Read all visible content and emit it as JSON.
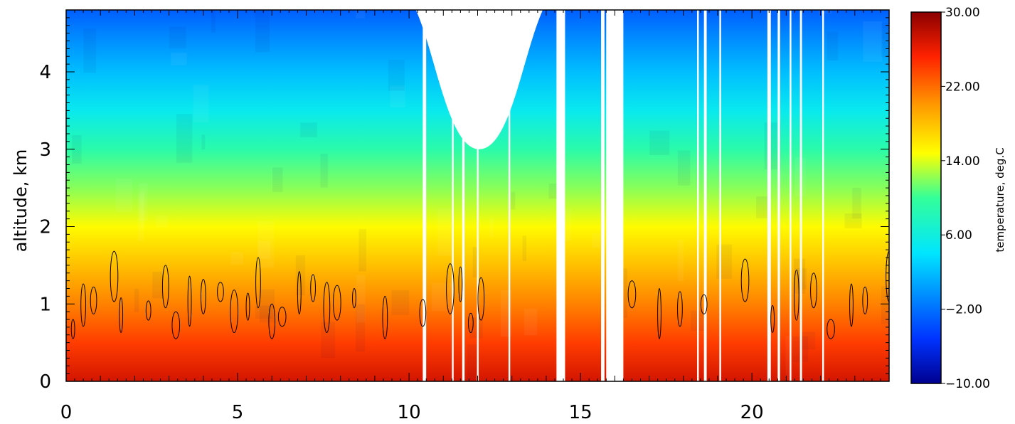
{
  "chart_data": {
    "type": "heatmap",
    "title": "",
    "xlabel": "",
    "ylabel": "altitude,  km",
    "xlim": [
      0,
      24
    ],
    "ylim": [
      0,
      4.8
    ],
    "x_ticks": [
      0,
      5,
      10,
      15,
      20
    ],
    "x_tick_labels": [
      "0",
      "5",
      "10",
      "15",
      "20"
    ],
    "y_ticks": [
      0,
      1,
      2,
      3,
      4
    ],
    "y_tick_labels": [
      "0",
      "1",
      "2",
      "3",
      "4"
    ],
    "grid": false,
    "colorbar": {
      "title": "temperature,  deg.C",
      "range": [
        -10,
        30
      ],
      "ticks": [
        30,
        22,
        14,
        6,
        -2,
        -10
      ],
      "tick_labels": [
        "30.00",
        "22.00",
        "14.00",
        "6.00",
        "−2.00",
        "−10.00"
      ],
      "colormap": "rainbow (dark blue → blue → cyan → yellow → orange → red → dark red)"
    },
    "vertical_profile_deg_c": [
      {
        "altitude_km": 0.0,
        "temperature": 27
      },
      {
        "altitude_km": 0.5,
        "temperature": 24
      },
      {
        "altitude_km": 1.0,
        "temperature": 21
      },
      {
        "altitude_km": 1.5,
        "temperature": 18
      },
      {
        "altitude_km": 2.0,
        "temperature": 15
      },
      {
        "altitude_km": 2.5,
        "temperature": 12
      },
      {
        "altitude_km": 3.0,
        "temperature": 9
      },
      {
        "altitude_km": 3.5,
        "temperature": 5
      },
      {
        "altitude_km": 4.0,
        "temperature": 2
      },
      {
        "altitude_km": 4.5,
        "temperature": -1
      },
      {
        "altitude_km": 4.8,
        "temperature": -3
      }
    ],
    "missing_data_gaps_hours": [
      [
        10.4,
        10.5
      ],
      [
        11.25,
        11.3
      ],
      [
        11.55,
        11.62
      ],
      [
        11.98,
        12.03
      ],
      [
        12.9,
        12.95
      ],
      [
        14.3,
        14.55
      ],
      [
        15.6,
        15.7
      ],
      [
        15.75,
        16.25
      ],
      [
        18.4,
        18.45
      ],
      [
        18.6,
        18.68
      ],
      [
        19.05,
        19.1
      ],
      [
        20.45,
        20.55
      ],
      [
        20.75,
        20.82
      ],
      [
        21.1,
        21.15
      ],
      [
        21.4,
        21.46
      ],
      [
        22.05,
        22.1
      ]
    ],
    "missing_data_regions": [
      {
        "x_range": [
          10.2,
          13.9
        ],
        "min_altitude_km": 3.0,
        "description": "blank area above ~3 km"
      }
    ],
    "contour_level_deg_c": 20
  }
}
